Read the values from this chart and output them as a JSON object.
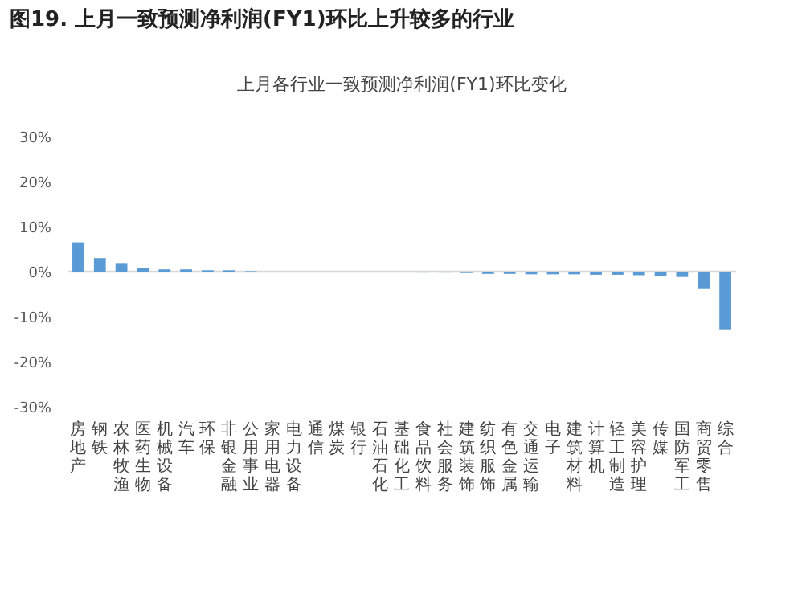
{
  "chart_data": {
    "type": "bar",
    "title": "图19. 上月一致预测净利润(FY1)环比上升较多的行业",
    "subtitle": "上月各行业一致预测净利润(FY1)环比变化",
    "categories": [
      "房地产",
      "钢铁",
      "农林牧渔",
      "医药生物",
      "机械设备",
      "汽车",
      "环保",
      "非银金融",
      "公用事业",
      "家用电器",
      "电力设备",
      "通信",
      "煤炭",
      "银行",
      "石油石化",
      "基础化工",
      "食品饮料",
      "社会服务",
      "建筑装饰",
      "纺织服饰",
      "有色金属",
      "交通运输",
      "电子",
      "建筑材料",
      "计算机",
      "轻工制造",
      "美容护理",
      "传媒",
      "国防军工",
      "商贸零售",
      "综合"
    ],
    "values": [
      6.5,
      3.0,
      1.9,
      0.8,
      0.5,
      0.5,
      0.3,
      0.3,
      0.1,
      0,
      0,
      0,
      0,
      0,
      -0.1,
      -0.1,
      -0.2,
      -0.2,
      -0.3,
      -0.5,
      -0.5,
      -0.6,
      -0.6,
      -0.6,
      -0.7,
      -0.7,
      -0.8,
      -1.0,
      -1.2,
      -3.7,
      -12.8
    ],
    "color": "#5b9bd5",
    "ylim": [
      -30,
      30
    ],
    "yticks": [
      {
        "value": 30,
        "label": "30%"
      },
      {
        "value": 20,
        "label": "20%"
      },
      {
        "value": 10,
        "label": "10%"
      },
      {
        "value": 0,
        "label": "0%"
      },
      {
        "value": -10,
        "label": "-10%"
      },
      {
        "value": -20,
        "label": "-20%"
      },
      {
        "value": -30,
        "label": "-30%"
      }
    ]
  }
}
